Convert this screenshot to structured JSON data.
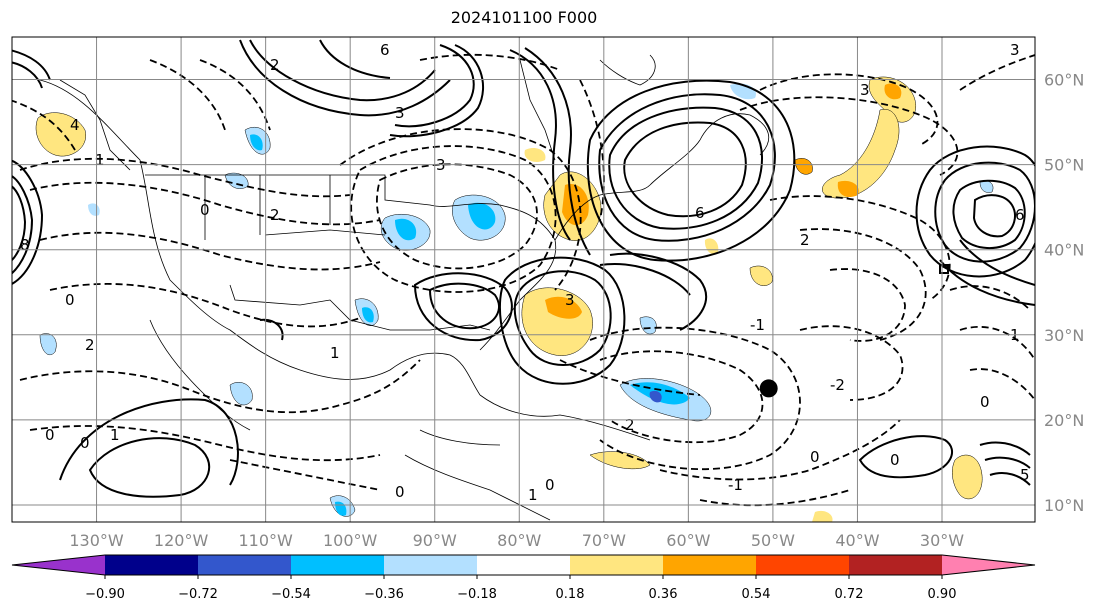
{
  "title": "2024101100 F000",
  "map": {
    "projection": "PlateCarree",
    "extent": {
      "lon_min": -140,
      "lon_max": -19,
      "lat_min": 8,
      "lat_max": 65
    },
    "lon_ticks": [
      {
        "value": -130,
        "label": "130°W"
      },
      {
        "value": -120,
        "label": "120°W"
      },
      {
        "value": -110,
        "label": "110°W"
      },
      {
        "value": -100,
        "label": "100°W"
      },
      {
        "value": -90,
        "label": "90°W"
      },
      {
        "value": -80,
        "label": "80°W"
      },
      {
        "value": -70,
        "label": "70°W"
      },
      {
        "value": -60,
        "label": "60°W"
      },
      {
        "value": -50,
        "label": "50°W"
      },
      {
        "value": -40,
        "label": "40°W"
      },
      {
        "value": -30,
        "label": "30°W"
      }
    ],
    "lat_ticks": [
      {
        "value": 60,
        "label": "60°N"
      },
      {
        "value": 50,
        "label": "50°N"
      },
      {
        "value": 40,
        "label": "40°N"
      },
      {
        "value": 30,
        "label": "30°N"
      },
      {
        "value": 20,
        "label": "20°N"
      },
      {
        "value": 10,
        "label": "10°N"
      }
    ],
    "contour_labels": [
      "0",
      "1",
      "2",
      "3",
      "4",
      "5",
      "6",
      "8",
      "-1",
      "-2"
    ],
    "marker": {
      "lon": -50.5,
      "lat": 23.7,
      "color": "#000000"
    }
  },
  "colorbar": {
    "ticks": [
      "−0.90",
      "−0.72",
      "−0.54",
      "−0.36",
      "−0.18",
      "0.18",
      "0.36",
      "0.54",
      "0.72",
      "0.90"
    ],
    "colors": [
      "#9932cc",
      "#00008b",
      "#3357cc",
      "#00bfff",
      "#b3e0ff",
      "#ffffff",
      "#ffe680",
      "#ffa500",
      "#ff4500",
      "#b22222",
      "#ff80b0"
    ]
  }
}
